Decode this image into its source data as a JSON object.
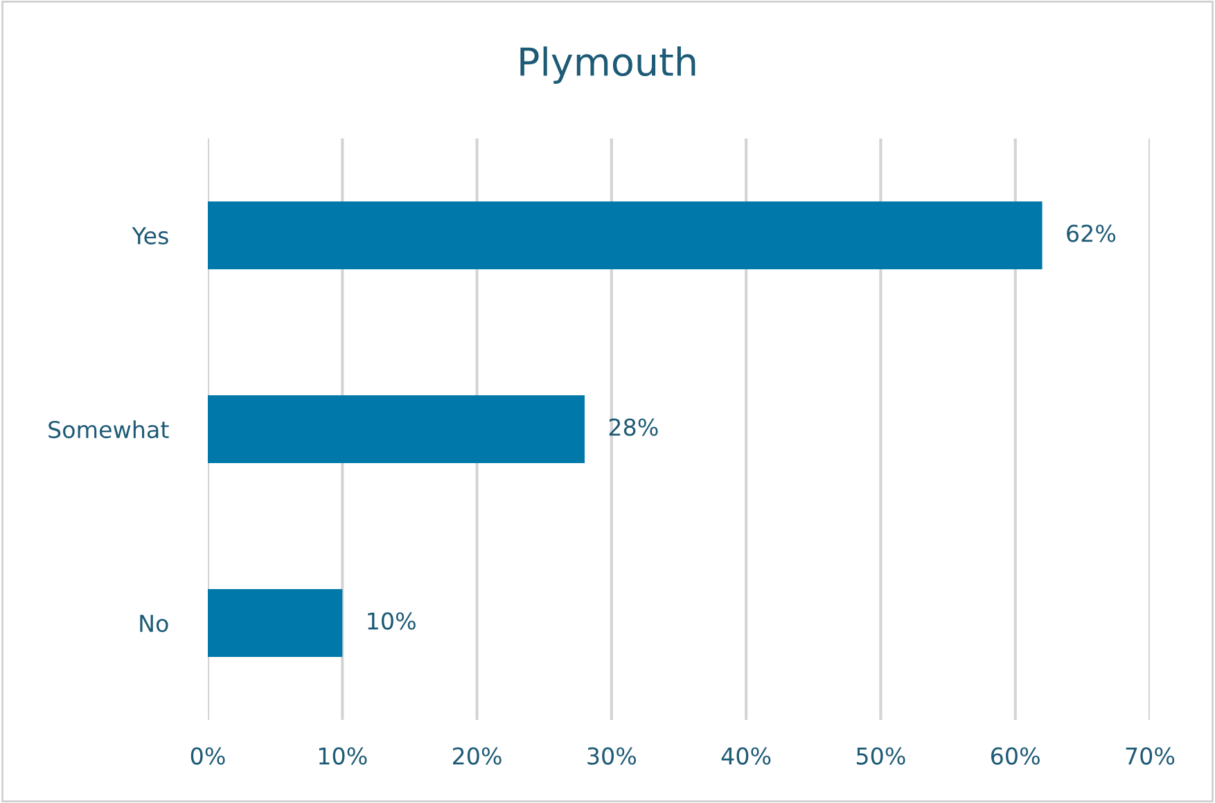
{
  "chart_data": {
    "type": "bar",
    "orientation": "horizontal",
    "title": "Plymouth",
    "categories": [
      "Yes",
      "Somewhat",
      "No"
    ],
    "values": [
      62,
      28,
      10
    ],
    "color": "#0079aa",
    "value_labels": [
      "62%",
      "28%",
      "10%"
    ],
    "xlim": [
      0,
      70
    ],
    "xticks": [
      {
        "value": 0,
        "label": "0%"
      },
      {
        "value": 10,
        "label": "10%"
      },
      {
        "value": 20,
        "label": "20%"
      },
      {
        "value": 30,
        "label": "30%"
      },
      {
        "value": 40,
        "label": "40%"
      },
      {
        "value": 50,
        "label": "50%"
      },
      {
        "value": 60,
        "label": "60%"
      },
      {
        "value": 70,
        "label": "70%"
      }
    ],
    "grid": "x",
    "legend": false
  }
}
